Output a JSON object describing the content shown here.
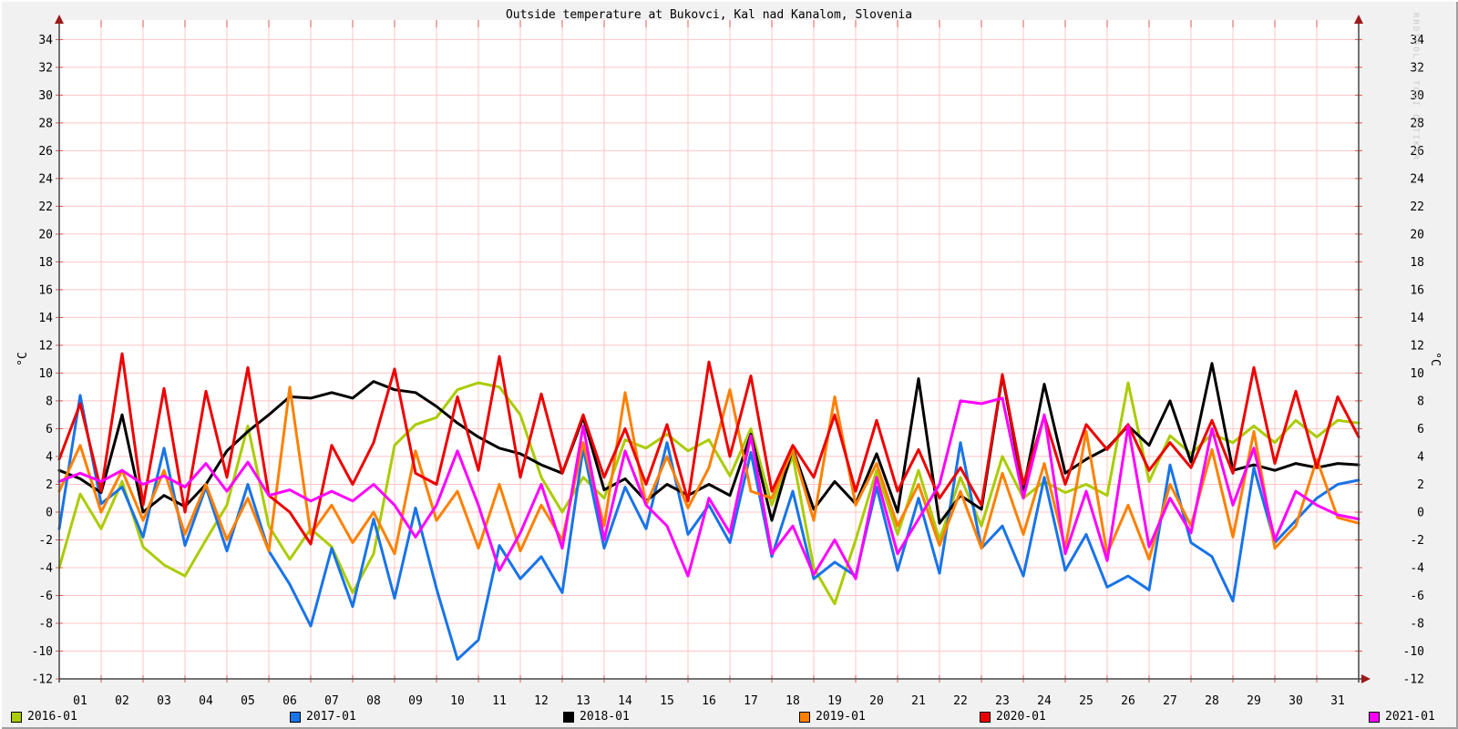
{
  "watermark": "RRDTOOL / TOBI OETIKER",
  "colors": {
    "background": "#f1f1f1",
    "plot_bg": "#ffffff",
    "grid": "#ffc4c4",
    "tick": "#e05555",
    "axis": "#474747",
    "arrow": "#9b1a1a",
    "text": "#000000",
    "watermark": "#c9c9c9"
  },
  "chart_data": {
    "type": "line",
    "title": "Outside temperature at Bukovci, Kal nad Kanalom, Slovenia",
    "ylabel": "°C",
    "xlabel": "",
    "ylim": [
      -12,
      35.4
    ],
    "y_ticks": [
      -12,
      -10,
      -8,
      -6,
      -4,
      -2,
      0,
      2,
      4,
      6,
      8,
      10,
      12,
      14,
      16,
      18,
      20,
      22,
      24,
      26,
      28,
      30,
      32,
      34
    ],
    "x_day_labels": [
      "01",
      "02",
      "03",
      "04",
      "05",
      "06",
      "07",
      "08",
      "09",
      "10",
      "11",
      "12",
      "13",
      "14",
      "15",
      "16",
      "17",
      "18",
      "19",
      "20",
      "21",
      "22",
      "23",
      "24",
      "25",
      "26",
      "27",
      "28",
      "29",
      "30",
      "31"
    ],
    "grid": true,
    "legend_position": "bottom",
    "x": [
      1,
      1.5,
      2,
      2.5,
      3,
      3.5,
      4,
      4.5,
      5,
      5.5,
      6,
      6.5,
      7,
      7.5,
      8,
      8.5,
      9,
      9.5,
      10,
      10.5,
      11,
      11.5,
      12,
      12.5,
      13,
      13.5,
      14,
      14.5,
      15,
      15.5,
      16,
      16.5,
      17,
      17.5,
      18,
      18.5,
      19,
      19.5,
      20,
      20.5,
      21,
      21.5,
      22,
      22.5,
      23,
      23.5,
      24,
      24.5,
      25,
      25.5,
      26,
      26.5,
      27,
      27.5,
      28,
      28.5,
      29,
      29.5,
      30,
      30.5,
      31,
      31.5,
      32
    ],
    "series": [
      {
        "name": "2016-01",
        "color": "#aacc00",
        "values": [
          -4.0,
          1.3,
          -1.2,
          2.2,
          -2.5,
          -3.8,
          -4.6,
          -2.0,
          0.5,
          6.2,
          -1.0,
          -3.4,
          -1.2,
          -2.5,
          -5.8,
          -3.0,
          4.8,
          6.3,
          6.8,
          8.8,
          9.3,
          9.0,
          7.0,
          2.5,
          0.0,
          2.5,
          1.0,
          5.2,
          4.6,
          5.6,
          4.4,
          5.2,
          2.6,
          6.0,
          0.5,
          4.0,
          -4.0,
          -6.6,
          -2.0,
          3.0,
          -1.6,
          3.0,
          -2.0,
          2.5,
          -1.0,
          4.0,
          1.0,
          2.2,
          1.4,
          2.0,
          1.2,
          9.3,
          2.2,
          5.5,
          4.2,
          5.6,
          5.0,
          6.2,
          5.0,
          6.6,
          5.4,
          6.6,
          6.4
        ]
      },
      {
        "name": "2017-01",
        "color": "#1874e8",
        "values": [
          -1.2,
          8.4,
          0.6,
          1.8,
          -1.8,
          4.6,
          -2.4,
          1.8,
          -2.8,
          2.0,
          -2.8,
          -5.2,
          -8.2,
          -2.6,
          -6.8,
          -0.5,
          -6.2,
          0.3,
          -5.5,
          -10.6,
          -9.2,
          -2.4,
          -4.8,
          -3.2,
          -5.8,
          4.6,
          -2.6,
          1.8,
          -1.2,
          5.0,
          -1.6,
          0.5,
          -2.2,
          4.3,
          -3.2,
          1.5,
          -4.8,
          -3.6,
          -4.6,
          1.8,
          -4.2,
          1.0,
          -4.4,
          5.0,
          -2.6,
          -1.0,
          -4.6,
          2.5,
          -4.2,
          -1.6,
          -5.4,
          -4.6,
          -5.6,
          3.4,
          -2.2,
          -3.2,
          -6.4,
          3.2,
          -2.2,
          -0.6,
          1.0,
          2.0,
          2.3
        ]
      },
      {
        "name": "2018-01",
        "color": "#000000",
        "values": [
          3.0,
          2.4,
          1.4,
          7.0,
          0.0,
          1.2,
          0.4,
          2.0,
          4.4,
          5.8,
          7.0,
          8.3,
          8.2,
          8.6,
          8.2,
          9.4,
          8.8,
          8.6,
          7.6,
          6.4,
          5.4,
          4.6,
          4.2,
          3.4,
          2.8,
          6.8,
          1.6,
          2.4,
          0.8,
          2.0,
          1.2,
          2.0,
          1.2,
          5.6,
          -0.6,
          4.6,
          0.2,
          2.2,
          0.6,
          4.2,
          0.0,
          9.6,
          -0.8,
          1.2,
          0.2,
          9.8,
          1.6,
          9.2,
          2.8,
          3.8,
          4.6,
          6.2,
          4.8,
          8.0,
          3.6,
          10.7,
          3.0,
          3.4,
          3.0,
          3.5,
          3.2,
          3.5,
          3.4
        ]
      },
      {
        "name": "2019-01",
        "color": "#ff8000",
        "values": [
          1.5,
          4.8,
          0.0,
          3.0,
          -0.6,
          3.0,
          -1.6,
          2.0,
          -2.0,
          1.0,
          -2.8,
          9.0,
          -1.6,
          0.5,
          -2.2,
          0.0,
          -3.0,
          4.4,
          -0.6,
          1.5,
          -2.6,
          2.0,
          -2.8,
          0.5,
          -2.0,
          5.0,
          -1.0,
          8.6,
          0.5,
          4.0,
          0.3,
          3.2,
          8.8,
          1.5,
          1.0,
          4.5,
          -0.6,
          8.3,
          0.5,
          3.5,
          -1.0,
          2.0,
          -2.4,
          1.5,
          -2.6,
          2.8,
          -1.6,
          3.5,
          -2.6,
          5.8,
          -3.0,
          0.5,
          -3.4,
          2.0,
          -1.0,
          4.5,
          -1.8,
          5.8,
          -2.6,
          -1.0,
          3.8,
          -0.4,
          -0.8
        ]
      },
      {
        "name": "2020-01",
        "color": "#ee0000",
        "values": [
          3.8,
          7.8,
          1.5,
          11.4,
          0.5,
          8.9,
          0.0,
          8.7,
          2.5,
          10.4,
          1.2,
          0.0,
          -2.3,
          4.8,
          2.0,
          5.0,
          10.3,
          2.8,
          2.0,
          8.3,
          3.0,
          11.2,
          2.5,
          8.5,
          2.8,
          7.0,
          2.5,
          6.0,
          2.0,
          6.3,
          0.8,
          10.8,
          4.0,
          9.8,
          1.5,
          4.8,
          2.5,
          7.0,
          1.5,
          6.6,
          1.5,
          4.5,
          1.0,
          3.2,
          0.5,
          9.9,
          2.0,
          6.9,
          2.0,
          6.3,
          4.5,
          6.3,
          3.0,
          5.0,
          3.2,
          6.6,
          2.8,
          10.4,
          3.5,
          8.7,
          3.2,
          8.3,
          5.4
        ]
      },
      {
        "name": "2021-01",
        "color": "#ff00ff",
        "values": [
          2.2,
          2.8,
          2.2,
          3.0,
          2.0,
          2.6,
          1.8,
          3.5,
          1.5,
          3.6,
          1.2,
          1.6,
          0.8,
          1.5,
          0.8,
          2.0,
          0.5,
          -1.8,
          0.5,
          4.4,
          0.5,
          -4.2,
          -1.5,
          2.0,
          -2.6,
          6.2,
          -2.0,
          4.4,
          0.5,
          -1.0,
          -4.6,
          1.0,
          -1.5,
          5.5,
          -3.0,
          -1.0,
          -4.5,
          -2.0,
          -4.8,
          2.5,
          -3.0,
          -0.5,
          2.0,
          8.0,
          7.8,
          8.2,
          1.0,
          7.0,
          -3.0,
          1.5,
          -3.5,
          6.2,
          -2.5,
          1.0,
          -1.5,
          6.0,
          0.5,
          4.6,
          -2.0,
          1.5,
          0.5,
          -0.2,
          -0.5
        ]
      }
    ]
  }
}
